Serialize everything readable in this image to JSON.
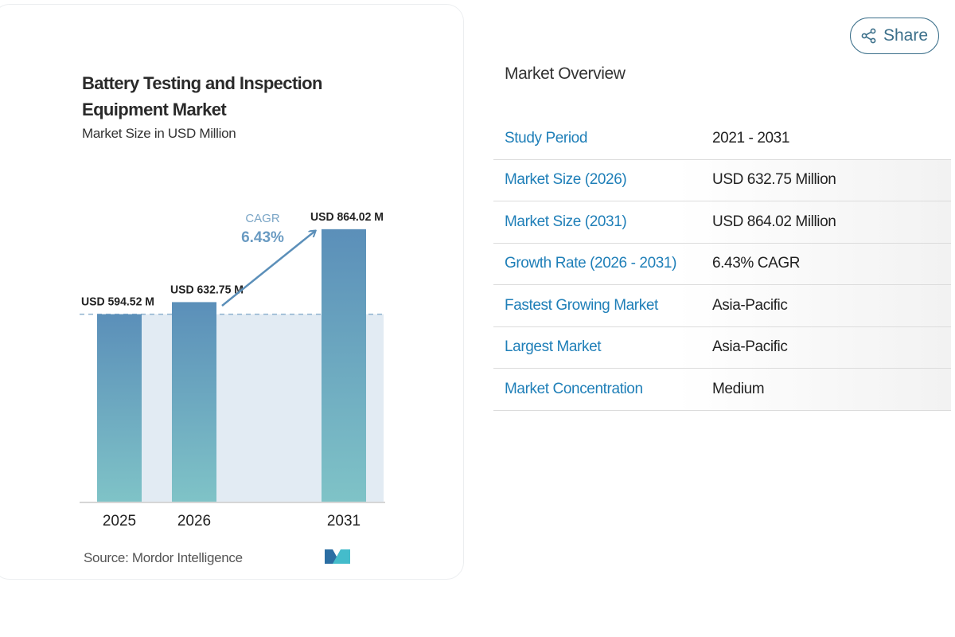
{
  "chart_card": {
    "title_line1": "Battery Testing and Inspection",
    "title_line2": "Equipment Market",
    "subtitle": "Market Size in USD Million",
    "source": "Source: Mordor Intelligence",
    "logo_text": "MI"
  },
  "chart_data": {
    "type": "bar",
    "categories": [
      "2025",
      "2026",
      "2031"
    ],
    "values": [
      594.52,
      632.75,
      864.02
    ],
    "data_labels": [
      "USD 594.52 M",
      "USD 632.75 M",
      "USD 864.02 M"
    ],
    "ylabel": "Market Size in USD Million",
    "annotation": {
      "label": "CAGR",
      "value": "6.43%"
    },
    "colors": {
      "bar_top": "#5b8fb9",
      "bar_bottom": "#7fc3c7",
      "shade": "#e2ebf3",
      "annotation": "#5b8fb9"
    }
  },
  "share_button": {
    "label": "Share",
    "icon": "share-icon"
  },
  "overview": {
    "title": "Market Overview",
    "rows": [
      {
        "label": "Study Period",
        "value": "2021 - 2031"
      },
      {
        "label": "Market Size (2026)",
        "value": "USD 632.75 Million"
      },
      {
        "label": "Market Size (2031)",
        "value": "USD 864.02 Million"
      },
      {
        "label": "Growth Rate (2026 - 2031)",
        "value": "6.43% CAGR"
      },
      {
        "label": "Fastest Growing Market",
        "value": "Asia-Pacific"
      },
      {
        "label": "Largest Market",
        "value": "Asia-Pacific"
      },
      {
        "label": "Market Concentration",
        "value": "Medium"
      }
    ]
  }
}
